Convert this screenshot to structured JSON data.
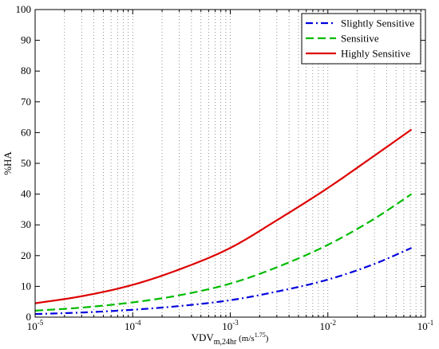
{
  "chart_data": {
    "type": "line",
    "xscale": "log",
    "xlim": [
      1e-05,
      0.1
    ],
    "ylim": [
      0,
      100
    ],
    "grid": "x-minor-dotted",
    "legend_position": "top-right",
    "ylabel": "%HA",
    "xlabel": {
      "main": "VDV",
      "subscript": "m,24hr",
      "unit_prefix": " (m/s",
      "unit_power": "1.75",
      "unit_suffix": ")"
    },
    "yticks": [
      {
        "value": 0,
        "label": "0"
      },
      {
        "value": 10,
        "label": "10"
      },
      {
        "value": 20,
        "label": "20"
      },
      {
        "value": 30,
        "label": "30"
      },
      {
        "value": 40,
        "label": "40"
      },
      {
        "value": 50,
        "label": "50"
      },
      {
        "value": 60,
        "label": "60"
      },
      {
        "value": 70,
        "label": "70"
      },
      {
        "value": 80,
        "label": "80"
      },
      {
        "value": 90,
        "label": "90"
      },
      {
        "value": 100,
        "label": "100"
      }
    ],
    "xticks": [
      {
        "value": 1e-05,
        "base": "10",
        "exp": "-5"
      },
      {
        "value": 0.0001,
        "base": "10",
        "exp": "-4"
      },
      {
        "value": 0.001,
        "base": "10",
        "exp": "-3"
      },
      {
        "value": 0.01,
        "base": "10",
        "exp": "-2"
      },
      {
        "value": 0.1,
        "base": "10",
        "exp": "-1"
      }
    ],
    "series": [
      {
        "name": "Slightly Sensitive",
        "color": "#0000dd",
        "dash": "dashdot",
        "x": [
          1e-05,
          3e-05,
          0.0001,
          0.0003,
          0.001,
          0.003,
          0.01,
          0.03,
          0.072
        ],
        "y": [
          1.0,
          1.5,
          2.4,
          3.6,
          5.5,
          8.3,
          12.2,
          17.3,
          22.5
        ]
      },
      {
        "name": "Sensitive",
        "color": "#00bb00",
        "dash": "dashed",
        "x": [
          1e-05,
          3e-05,
          0.0001,
          0.0003,
          0.001,
          0.003,
          0.01,
          0.03,
          0.072
        ],
        "y": [
          2.1,
          3.1,
          4.8,
          7.1,
          10.9,
          16.2,
          23.5,
          32.0,
          40.0
        ]
      },
      {
        "name": "Highly Sensitive",
        "color": "#dd0000",
        "dash": "solid",
        "x": [
          1e-05,
          3e-05,
          0.0001,
          0.0003,
          0.001,
          0.003,
          0.01,
          0.03,
          0.072
        ],
        "y": [
          4.5,
          6.8,
          10.5,
          15.5,
          22.5,
          31.5,
          42.0,
          52.5,
          61.0
        ]
      }
    ]
  }
}
